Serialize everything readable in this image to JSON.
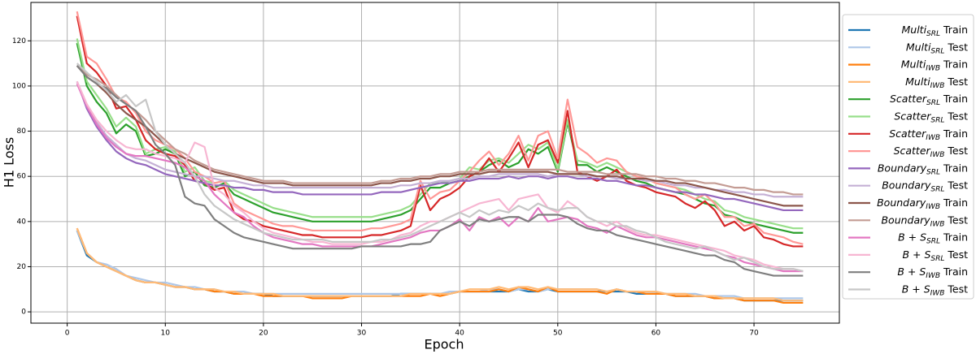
{
  "chart_data": {
    "type": "line",
    "xlabel": "Epoch",
    "ylabel": "H1 Loss",
    "xlim": [
      -3.7,
      78.7
    ],
    "ylim": [
      -5,
      137
    ],
    "xticks": [
      0,
      10,
      20,
      30,
      40,
      50,
      60,
      70
    ],
    "yticks": [
      0,
      20,
      40,
      60,
      80,
      100,
      120
    ],
    "grid": true,
    "legend": "outside right",
    "x": [
      1,
      2,
      3,
      4,
      5,
      6,
      7,
      8,
      9,
      10,
      11,
      12,
      13,
      14,
      15,
      16,
      17,
      18,
      19,
      20,
      21,
      22,
      23,
      24,
      25,
      26,
      27,
      28,
      29,
      30,
      31,
      32,
      33,
      34,
      35,
      36,
      37,
      38,
      39,
      40,
      41,
      42,
      43,
      44,
      45,
      46,
      47,
      48,
      49,
      50,
      51,
      52,
      53,
      54,
      55,
      56,
      57,
      58,
      59,
      60,
      61,
      62,
      63,
      64,
      65,
      66,
      67,
      68,
      69,
      70,
      71,
      72,
      73,
      74,
      75
    ],
    "series": [
      {
        "name": "Multi_SRL Train",
        "color": "#1f77b4",
        "values": [
          36,
          25,
          22,
          20,
          18,
          16,
          14,
          13,
          13,
          12,
          11,
          11,
          10,
          10,
          9,
          9,
          8,
          8,
          8,
          8,
          7,
          7,
          7,
          7,
          7,
          7,
          7,
          7,
          7,
          7,
          7,
          7,
          7,
          8,
          8,
          8,
          8,
          8,
          8,
          9,
          9,
          9,
          9,
          9,
          9,
          10,
          9,
          9,
          10,
          9,
          9,
          9,
          9,
          9,
          9,
          9,
          9,
          8,
          8,
          8,
          8,
          7,
          7,
          7,
          7,
          6,
          6,
          6,
          5,
          5,
          5,
          5,
          5,
          5,
          5
        ]
      },
      {
        "name": "Multi_SRL Test",
        "color": "#aec7e8",
        "values": [
          36,
          26,
          22,
          21,
          19,
          16,
          15,
          14,
          13,
          13,
          12,
          11,
          11,
          10,
          10,
          9,
          9,
          9,
          8,
          8,
          8,
          8,
          8,
          8,
          8,
          8,
          8,
          8,
          8,
          8,
          8,
          8,
          8,
          8,
          8,
          8,
          8,
          8,
          9,
          9,
          9,
          9,
          10,
          10,
          9,
          10,
          10,
          9,
          10,
          10,
          10,
          10,
          10,
          10,
          9,
          10,
          9,
          9,
          9,
          9,
          8,
          8,
          8,
          8,
          7,
          7,
          7,
          7,
          6,
          6,
          6,
          6,
          6,
          6,
          6
        ]
      },
      {
        "name": "Multi_IWB Train",
        "color": "#ff7f0e",
        "values": [
          37,
          26,
          22,
          20,
          18,
          16,
          14,
          13,
          13,
          12,
          11,
          11,
          10,
          10,
          9,
          9,
          8,
          8,
          8,
          7,
          7,
          7,
          7,
          7,
          6,
          6,
          6,
          6,
          7,
          7,
          7,
          7,
          7,
          7,
          7,
          7,
          8,
          7,
          8,
          9,
          9,
          9,
          9,
          10,
          9,
          11,
          10,
          9,
          11,
          9,
          9,
          9,
          9,
          9,
          8,
          10,
          9,
          9,
          8,
          8,
          8,
          7,
          7,
          7,
          7,
          6,
          6,
          6,
          5,
          5,
          5,
          5,
          4,
          4,
          4
        ]
      },
      {
        "name": "Multi_IWB Test",
        "color": "#ffbb78",
        "values": [
          37,
          26,
          22,
          20,
          18,
          16,
          14,
          13,
          13,
          12,
          11,
          11,
          10,
          10,
          10,
          9,
          9,
          8,
          8,
          8,
          8,
          7,
          7,
          7,
          7,
          7,
          7,
          7,
          7,
          7,
          7,
          7,
          7,
          7,
          8,
          8,
          8,
          8,
          8,
          9,
          10,
          10,
          10,
          11,
          10,
          11,
          11,
          10,
          11,
          10,
          10,
          10,
          10,
          10,
          9,
          10,
          9,
          9,
          9,
          9,
          8,
          8,
          8,
          7,
          7,
          7,
          6,
          6,
          6,
          6,
          6,
          6,
          5,
          5,
          5
        ]
      },
      {
        "name": "Scatter_SRL Train",
        "color": "#2ca02c",
        "values": [
          119,
          100,
          93,
          88,
          79,
          83,
          80,
          69,
          70,
          72,
          70,
          60,
          62,
          56,
          55,
          57,
          52,
          50,
          48,
          46,
          44,
          43,
          42,
          41,
          40,
          40,
          40,
          40,
          40,
          40,
          40,
          41,
          42,
          43,
          45,
          50,
          55,
          55,
          57,
          58,
          60,
          62,
          65,
          67,
          64,
          66,
          72,
          70,
          73,
          62,
          84,
          65,
          65,
          62,
          64,
          62,
          60,
          58,
          57,
          55,
          54,
          53,
          52,
          50,
          48,
          47,
          43,
          42,
          40,
          39,
          38,
          37,
          36,
          35,
          35
        ]
      },
      {
        "name": "Scatter_SRL Test",
        "color": "#98df8a",
        "values": [
          121,
          102,
          96,
          90,
          82,
          86,
          82,
          70,
          72,
          73,
          71,
          62,
          64,
          58,
          57,
          58,
          54,
          52,
          50,
          48,
          46,
          45,
          44,
          43,
          42,
          42,
          42,
          42,
          42,
          42,
          42,
          43,
          44,
          45,
          47,
          52,
          57,
          57,
          58,
          59,
          64,
          63,
          67,
          68,
          66,
          70,
          74,
          72,
          75,
          63,
          85,
          67,
          66,
          64,
          66,
          64,
          62,
          60,
          59,
          57,
          56,
          55,
          54,
          52,
          50,
          49,
          45,
          44,
          42,
          41,
          40,
          39,
          38,
          37,
          37
        ]
      },
      {
        "name": "Scatter_IWB Train",
        "color": "#d62728",
        "values": [
          131,
          110,
          106,
          100,
          90,
          91,
          85,
          76,
          72,
          70,
          69,
          65,
          58,
          57,
          54,
          55,
          44,
          41,
          40,
          38,
          37,
          36,
          35,
          34,
          34,
          33,
          33,
          33,
          33,
          33,
          34,
          34,
          35,
          36,
          38,
          56,
          45,
          50,
          52,
          55,
          60,
          62,
          68,
          62,
          68,
          75,
          64,
          74,
          76,
          66,
          89,
          62,
          60,
          58,
          60,
          63,
          58,
          56,
          55,
          53,
          52,
          51,
          48,
          46,
          49,
          45,
          38,
          40,
          36,
          38,
          33,
          32,
          30,
          29,
          29
        ]
      },
      {
        "name": "Scatter_IWB Test",
        "color": "#ff9896",
        "values": [
          133,
          113,
          110,
          103,
          95,
          93,
          88,
          80,
          76,
          74,
          72,
          68,
          62,
          60,
          57,
          58,
          48,
          45,
          43,
          41,
          39,
          38,
          38,
          37,
          36,
          36,
          36,
          36,
          36,
          36,
          37,
          37,
          38,
          39,
          41,
          58,
          50,
          53,
          54,
          58,
          62,
          67,
          71,
          65,
          70,
          78,
          67,
          78,
          80,
          68,
          94,
          73,
          70,
          66,
          68,
          67,
          62,
          60,
          59,
          57,
          56,
          55,
          52,
          50,
          52,
          48,
          42,
          42,
          38,
          39,
          35,
          34,
          33,
          31,
          30
        ]
      },
      {
        "name": "Boundary_SRL Train",
        "color": "#9467bd",
        "values": [
          102,
          90,
          82,
          76,
          71,
          68,
          66,
          65,
          63,
          61,
          60,
          59,
          58,
          57,
          56,
          56,
          55,
          55,
          54,
          54,
          53,
          53,
          53,
          52,
          52,
          52,
          52,
          52,
          52,
          52,
          52,
          53,
          53,
          53,
          54,
          55,
          56,
          57,
          57,
          58,
          58,
          59,
          59,
          59,
          60,
          59,
          60,
          60,
          59,
          60,
          60,
          59,
          59,
          59,
          58,
          58,
          57,
          56,
          56,
          55,
          54,
          53,
          53,
          52,
          52,
          51,
          50,
          50,
          49,
          48,
          47,
          46,
          45,
          45,
          45
        ]
      },
      {
        "name": "Boundary_SRL Test",
        "color": "#c5b0d5",
        "values": [
          102,
          91,
          84,
          78,
          74,
          70,
          68,
          67,
          65,
          63,
          62,
          61,
          60,
          60,
          59,
          58,
          58,
          57,
          56,
          56,
          55,
          55,
          55,
          55,
          55,
          55,
          55,
          55,
          55,
          55,
          55,
          55,
          55,
          56,
          56,
          57,
          57,
          58,
          58,
          59,
          59,
          60,
          60,
          61,
          61,
          61,
          61,
          61,
          60,
          61,
          61,
          61,
          60,
          60,
          60,
          59,
          59,
          59,
          58,
          58,
          57,
          56,
          56,
          55,
          55,
          54,
          54,
          53,
          53,
          52,
          52,
          51,
          51,
          51,
          51
        ]
      },
      {
        "name": "Boundary_IWB Train",
        "color": "#8c564b",
        "values": [
          109,
          104,
          101,
          97,
          92,
          88,
          85,
          82,
          78,
          74,
          70,
          68,
          66,
          64,
          62,
          61,
          60,
          59,
          58,
          57,
          57,
          57,
          56,
          56,
          56,
          56,
          56,
          56,
          56,
          56,
          56,
          57,
          57,
          58,
          58,
          59,
          59,
          60,
          60,
          61,
          61,
          61,
          62,
          62,
          62,
          62,
          62,
          62,
          62,
          61,
          61,
          61,
          61,
          60,
          60,
          60,
          59,
          59,
          59,
          58,
          58,
          57,
          57,
          56,
          55,
          54,
          53,
          52,
          51,
          50,
          49,
          48,
          47,
          47,
          47
        ]
      },
      {
        "name": "Boundary_IWB Test",
        "color": "#c49c94",
        "values": [
          109,
          105,
          103,
          100,
          96,
          92,
          89,
          85,
          80,
          76,
          72,
          70,
          67,
          65,
          63,
          62,
          61,
          60,
          59,
          58,
          58,
          58,
          57,
          57,
          57,
          57,
          57,
          57,
          57,
          57,
          57,
          58,
          58,
          59,
          59,
          60,
          60,
          61,
          61,
          62,
          62,
          62,
          63,
          63,
          63,
          63,
          63,
          63,
          63,
          63,
          62,
          62,
          62,
          62,
          61,
          61,
          61,
          61,
          60,
          60,
          59,
          59,
          58,
          58,
          57,
          57,
          56,
          55,
          55,
          54,
          54,
          53,
          53,
          52,
          52
        ]
      },
      {
        "name": "B + S_SRL Train",
        "color": "#e377c2",
        "values": [
          101,
          91,
          83,
          77,
          73,
          70,
          69,
          69,
          68,
          67,
          66,
          64,
          60,
          58,
          52,
          48,
          44,
          42,
          38,
          35,
          33,
          32,
          31,
          30,
          30,
          29,
          29,
          29,
          29,
          29,
          29,
          30,
          31,
          32,
          33,
          35,
          36,
          36,
          38,
          41,
          36,
          42,
          40,
          42,
          38,
          42,
          40,
          46,
          40,
          41,
          42,
          41,
          38,
          37,
          35,
          38,
          36,
          34,
          33,
          33,
          32,
          31,
          30,
          29,
          28,
          27,
          25,
          24,
          22,
          21,
          20,
          19,
          18,
          18,
          18
        ]
      },
      {
        "name": "B + S_SRL Test",
        "color": "#f7b6d2",
        "values": [
          102,
          92,
          85,
          80,
          76,
          73,
          72,
          72,
          70,
          69,
          68,
          66,
          75,
          73,
          55,
          52,
          47,
          44,
          40,
          37,
          35,
          34,
          33,
          32,
          31,
          31,
          30,
          30,
          30,
          30,
          31,
          31,
          32,
          34,
          35,
          38,
          40,
          40,
          42,
          44,
          46,
          48,
          49,
          50,
          45,
          50,
          51,
          52,
          46,
          44,
          49,
          46,
          42,
          40,
          38,
          40,
          37,
          35,
          34,
          34,
          33,
          32,
          31,
          30,
          29,
          28,
          27,
          25,
          24,
          23,
          21,
          20,
          19,
          19,
          18
        ]
      },
      {
        "name": "B + S_IWB Train",
        "color": "#7f7f7f",
        "values": [
          109,
          104,
          101,
          99,
          95,
          92,
          89,
          82,
          74,
          70,
          65,
          51,
          48,
          47,
          41,
          38,
          35,
          33,
          32,
          31,
          30,
          29,
          28,
          28,
          28,
          28,
          28,
          28,
          28,
          29,
          29,
          29,
          29,
          29,
          30,
          30,
          31,
          36,
          38,
          40,
          38,
          41,
          40,
          41,
          42,
          42,
          40,
          43,
          43,
          43,
          42,
          39,
          37,
          36,
          36,
          34,
          33,
          32,
          31,
          30,
          29,
          28,
          27,
          26,
          25,
          25,
          23,
          22,
          19,
          18,
          17,
          16,
          16,
          16,
          16
        ]
      },
      {
        "name": "B + S_IWB Test",
        "color": "#c7c7c7",
        "values": [
          110,
          106,
          102,
          98,
          93,
          96,
          91,
          94,
          80,
          74,
          70,
          66,
          60,
          52,
          47,
          44,
          41,
          39,
          37,
          35,
          34,
          33,
          32,
          32,
          32,
          32,
          31,
          31,
          31,
          31,
          31,
          32,
          32,
          33,
          34,
          36,
          38,
          40,
          42,
          44,
          42,
          45,
          43,
          45,
          44,
          47,
          45,
          48,
          46,
          45,
          46,
          46,
          42,
          40,
          40,
          38,
          38,
          36,
          35,
          33,
          31,
          30,
          29,
          28,
          29,
          27,
          25,
          23,
          24,
          22,
          20,
          19,
          19,
          19,
          18
        ]
      }
    ]
  }
}
